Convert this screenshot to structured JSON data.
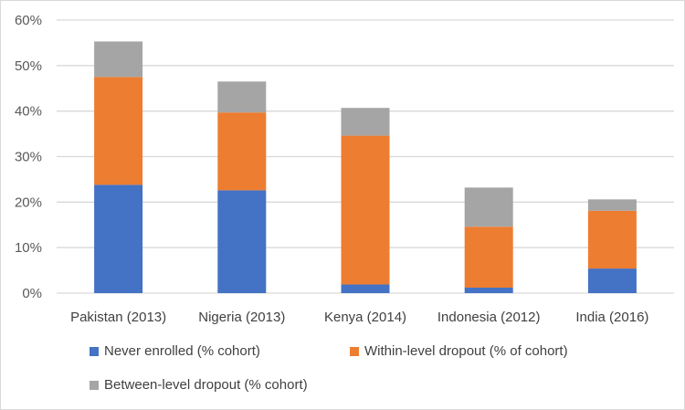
{
  "chart_data": {
    "type": "bar",
    "stacked": true,
    "categories": [
      "Pakistan (2013)",
      "Nigeria (2013)",
      "Kenya (2014)",
      "Indonesia (2012)",
      "India (2016)"
    ],
    "series": [
      {
        "name": "Never enrolled (% cohort)",
        "color": "#4472c4",
        "values": [
          23.8,
          22.6,
          1.9,
          1.2,
          5.4
        ]
      },
      {
        "name": "Within-level dropout (% of cohort)",
        "color": "#ed7d31",
        "values": [
          23.7,
          17.1,
          32.7,
          13.4,
          12.7
        ]
      },
      {
        "name": "Between-level dropout (% cohort)",
        "color": "#a5a5a5",
        "values": [
          7.8,
          6.8,
          6.1,
          8.6,
          2.5
        ]
      }
    ],
    "yticks": [
      "0%",
      "10%",
      "20%",
      "30%",
      "40%",
      "50%",
      "60%"
    ],
    "ylim": [
      0,
      60
    ],
    "grid": true,
    "legend": "bottom"
  }
}
